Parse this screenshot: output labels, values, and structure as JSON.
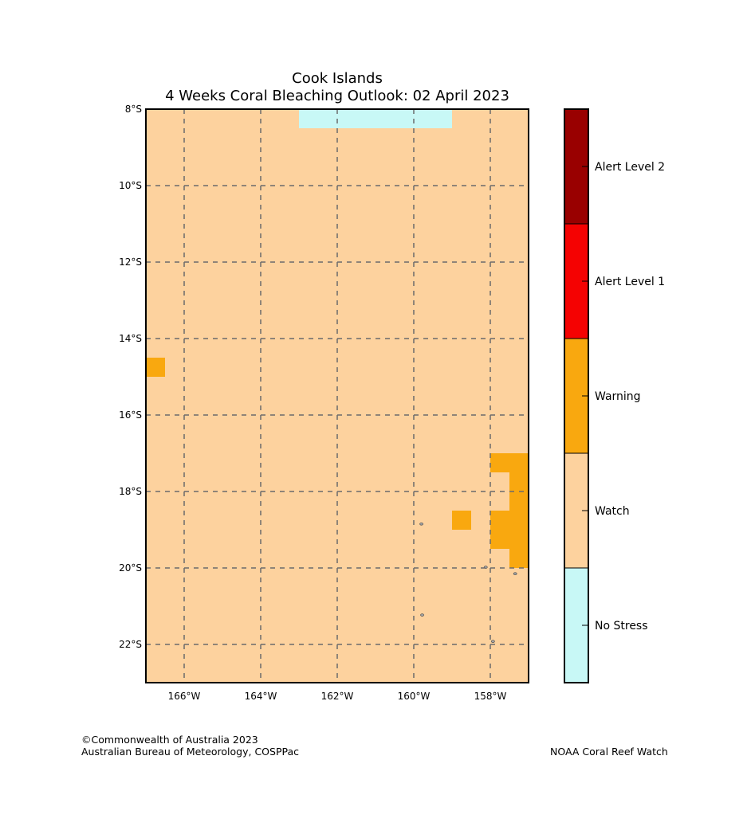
{
  "title": {
    "line1": "Cook Islands",
    "line2": "4 Weeks Coral Bleaching Outlook: 02 April 2023"
  },
  "map": {
    "lon_range": [
      -167,
      -157
    ],
    "lat_range": [
      -23,
      -8
    ],
    "cell_size_deg": 0.5,
    "lat_ticks": [
      {
        "value": -8,
        "label": "8°S"
      },
      {
        "value": -10,
        "label": "10°S"
      },
      {
        "value": -12,
        "label": "12°S"
      },
      {
        "value": -14,
        "label": "14°S"
      },
      {
        "value": -16,
        "label": "16°S"
      },
      {
        "value": -18,
        "label": "18°S"
      },
      {
        "value": -20,
        "label": "20°S"
      },
      {
        "value": -22,
        "label": "22°S"
      }
    ],
    "lon_ticks": [
      {
        "value": -166,
        "label": "166°W"
      },
      {
        "value": -164,
        "label": "164°W"
      },
      {
        "value": -162,
        "label": "162°W"
      },
      {
        "value": -160,
        "label": "160°W"
      },
      {
        "value": -158,
        "label": "158°W"
      }
    ],
    "background_level": "watch",
    "regions": [
      {
        "level": "no_stress",
        "lon": [
          -163,
          -159
        ],
        "lat": [
          -8.5,
          -8
        ]
      },
      {
        "level": "warning",
        "lon": [
          -167,
          -166.5
        ],
        "lat": [
          -15,
          -14.5
        ]
      },
      {
        "level": "warning",
        "lon": [
          -158,
          -157
        ],
        "lat": [
          -17.5,
          -17
        ]
      },
      {
        "level": "warning",
        "lon": [
          -157.5,
          -157
        ],
        "lat": [
          -18.5,
          -17.5
        ]
      },
      {
        "level": "warning",
        "lon": [
          -159,
          -158.5
        ],
        "lat": [
          -19,
          -18.5
        ]
      },
      {
        "level": "warning",
        "lon": [
          -158,
          -157
        ],
        "lat": [
          -19.5,
          -18.5
        ]
      },
      {
        "level": "warning",
        "lon": [
          -157.5,
          -157
        ],
        "lat": [
          -20,
          -19.5
        ]
      }
    ],
    "islands": [
      {
        "lon": -159.8,
        "lat": -18.85
      },
      {
        "lon": -159.78,
        "lat": -21.23
      },
      {
        "lon": -158.12,
        "lat": -19.98
      },
      {
        "lon": -157.35,
        "lat": -20.15
      },
      {
        "lon": -157.93,
        "lat": -21.92
      }
    ]
  },
  "legend": {
    "levels": [
      {
        "key": "no_stress",
        "label": "No Stress",
        "color": "#c8f8f6"
      },
      {
        "key": "watch",
        "label": "Watch",
        "color": "#fdd29e"
      },
      {
        "key": "warning",
        "label": "Warning",
        "color": "#f9a80f"
      },
      {
        "key": "alert1",
        "label": "Alert Level 1",
        "color": "#f50202"
      },
      {
        "key": "alert2",
        "label": "Alert Level 2",
        "color": "#990000"
      }
    ]
  },
  "credits": {
    "left_line1": "©Commonwealth of Australia 2023",
    "left_line2": "Australian Bureau of Meteorology, COSPPac",
    "right": "NOAA Coral Reef Watch"
  }
}
